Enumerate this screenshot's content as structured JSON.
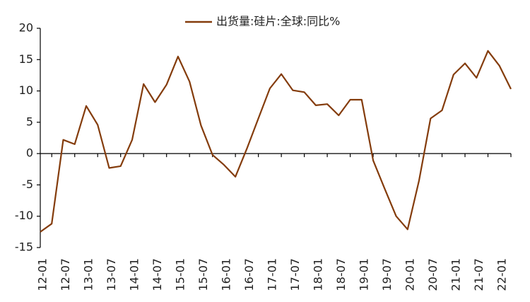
{
  "chart_data": {
    "type": "line",
    "categories": [
      "12-01",
      null,
      "12-07",
      null,
      "13-01",
      null,
      "13-07",
      null,
      "14-01",
      null,
      "14-07",
      null,
      "15-01",
      null,
      "15-07",
      null,
      "16-01",
      null,
      "16-07",
      null,
      "17-01",
      null,
      "17-07",
      null,
      "18-01",
      null,
      "18-07",
      null,
      "19-01",
      null,
      "19-07",
      null,
      "20-01",
      null,
      "20-07",
      null,
      "21-01",
      null,
      "21-07",
      null,
      "22-01",
      null
    ],
    "series": [
      {
        "name": "出货量:硅片:全球:同比%",
        "color": "#843c0c",
        "values": [
          -12.5,
          -11.2,
          2.2,
          1.5,
          7.6,
          4.6,
          -2.3,
          -2.0,
          2.2,
          11.1,
          8.2,
          11.0,
          15.5,
          11.5,
          4.5,
          -0.2,
          -1.8,
          -3.7,
          0.8,
          5.6,
          10.4,
          12.7,
          10.1,
          9.8,
          7.7,
          7.9,
          6.1,
          8.6,
          8.6,
          -1.1,
          -5.6,
          -10.0,
          -12.1,
          -4.3,
          5.6,
          6.9,
          12.6,
          14.4,
          12.1,
          16.4,
          14.0,
          10.3
        ]
      }
    ],
    "ylim": [
      -15,
      20
    ],
    "yticks": [
      -15,
      -10,
      -5,
      0,
      5,
      10,
      15,
      20
    ]
  }
}
